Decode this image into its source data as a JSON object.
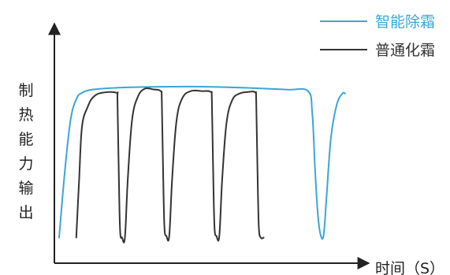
{
  "chart_data": {
    "type": "line",
    "title": "",
    "xlabel": "时间（S）",
    "ylabel": "制热能力输出",
    "axes_ticks": false,
    "grid": false,
    "legend_position": "top-right",
    "series": [
      {
        "name": "智能除霜",
        "color": "#3aa6d6",
        "points": [
          [
            0,
            0.05
          ],
          [
            2,
            0.45
          ],
          [
            4,
            0.76
          ],
          [
            6,
            0.885
          ],
          [
            8,
            0.925
          ],
          [
            12,
            0.945
          ],
          [
            20,
            0.955
          ],
          [
            30,
            0.96
          ],
          [
            40,
            0.962
          ],
          [
            50,
            0.962
          ],
          [
            60,
            0.958
          ],
          [
            70,
            0.952
          ],
          [
            80,
            0.944
          ],
          [
            87,
            0.935
          ],
          [
            88.5,
            0.8
          ],
          [
            89.5,
            0.45
          ],
          [
            90.5,
            0.18
          ],
          [
            91.5,
            0.06
          ],
          [
            92.5,
            0.07
          ],
          [
            93.5,
            0.3
          ],
          [
            95,
            0.65
          ],
          [
            97,
            0.85
          ],
          [
            99,
            0.92
          ],
          [
            100,
            0.92
          ]
        ]
      },
      {
        "name": "普通化霜",
        "color": "#333333",
        "points": [
          [
            6,
            0.05
          ],
          [
            7,
            0.4
          ],
          [
            8,
            0.72
          ],
          [
            10,
            0.84
          ],
          [
            12,
            0.9
          ],
          [
            15,
            0.925
          ],
          [
            20,
            0.925
          ],
          [
            20.4,
            0.88
          ],
          [
            20.8,
            0.5
          ],
          [
            21.3,
            0.1
          ],
          [
            22,
            0.05
          ],
          [
            23,
            0.05
          ],
          [
            24,
            0.4
          ],
          [
            25.5,
            0.76
          ],
          [
            27.5,
            0.9
          ],
          [
            30,
            0.95
          ],
          [
            33,
            0.945
          ],
          [
            35.5,
            0.935
          ],
          [
            35.9,
            0.88
          ],
          [
            36.3,
            0.5
          ],
          [
            36.8,
            0.12
          ],
          [
            37.5,
            0.06
          ],
          [
            38.5,
            0.06
          ],
          [
            39.5,
            0.4
          ],
          [
            41,
            0.75
          ],
          [
            43,
            0.89
          ],
          [
            46,
            0.935
          ],
          [
            50,
            0.935
          ],
          [
            53,
            0.93
          ],
          [
            53.4,
            0.88
          ],
          [
            53.8,
            0.5
          ],
          [
            54.3,
            0.12
          ],
          [
            55,
            0.06
          ],
          [
            56,
            0.06
          ],
          [
            57,
            0.4
          ],
          [
            58.5,
            0.74
          ],
          [
            60.5,
            0.88
          ],
          [
            63,
            0.92
          ],
          [
            66,
            0.93
          ],
          [
            68.5,
            0.928
          ],
          [
            68.9,
            0.88
          ],
          [
            69.3,
            0.5
          ],
          [
            69.8,
            0.12
          ],
          [
            70.5,
            0.05
          ],
          [
            71.5,
            0.05
          ]
        ]
      }
    ],
    "xlim": [
      0,
      100
    ],
    "ylim": [
      0,
      1
    ]
  }
}
